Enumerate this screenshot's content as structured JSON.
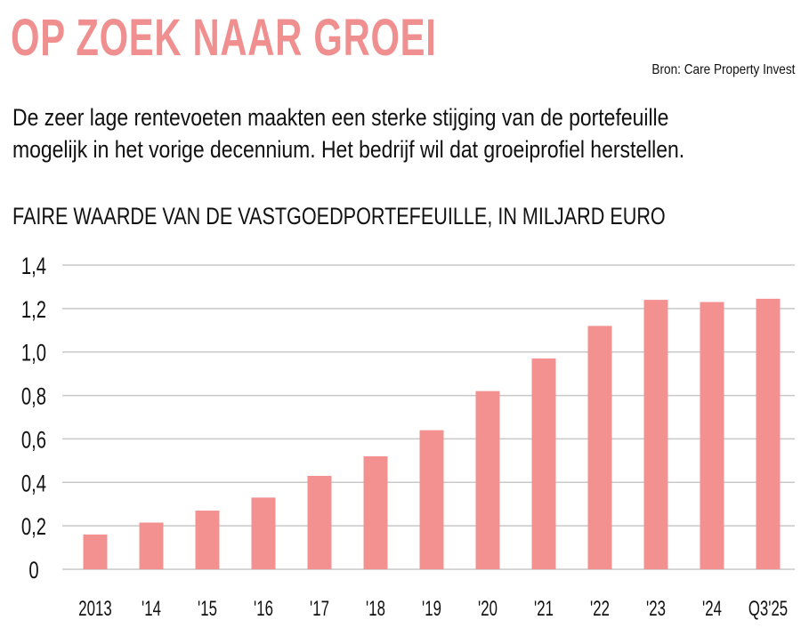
{
  "header": {
    "title": "OP ZOEK NAAR GROEI",
    "source": "Bron: Care Property Invest",
    "subtitle_lines": [
      "De zeer lage rentevoeten maakten een sterke stijging van de portefeuille",
      "mogelijk in het vorige decennium. Het bedrijf wil dat groeiprofiel herstellen."
    ]
  },
  "chart_data": {
    "type": "bar",
    "title": "FAIRE WAARDE VAN DE VASTGOEDPORTEFEUILLE, IN MILJARD EURO",
    "xlabel": "",
    "ylabel": "",
    "categories": [
      "2013",
      "'14",
      "'15",
      "'16",
      "'17",
      "'18",
      "'19",
      "'20",
      "'21",
      "'22",
      "'23",
      "'24",
      "Q3'25"
    ],
    "values": [
      0.16,
      0.215,
      0.27,
      0.33,
      0.43,
      0.52,
      0.64,
      0.82,
      0.97,
      1.12,
      1.24,
      1.23,
      1.245
    ],
    "ylim": [
      0,
      1.4
    ],
    "yticks": [
      0,
      0.2,
      0.4,
      0.6,
      0.8,
      1.0,
      1.2,
      1.4
    ],
    "ytick_labels": [
      "0",
      "0,2",
      "0,4",
      "0,6",
      "0,8",
      "1,0",
      "1,2",
      "1,4"
    ],
    "grid": true,
    "bar_color": "#f39090",
    "grid_color": "#c8c8c8"
  }
}
